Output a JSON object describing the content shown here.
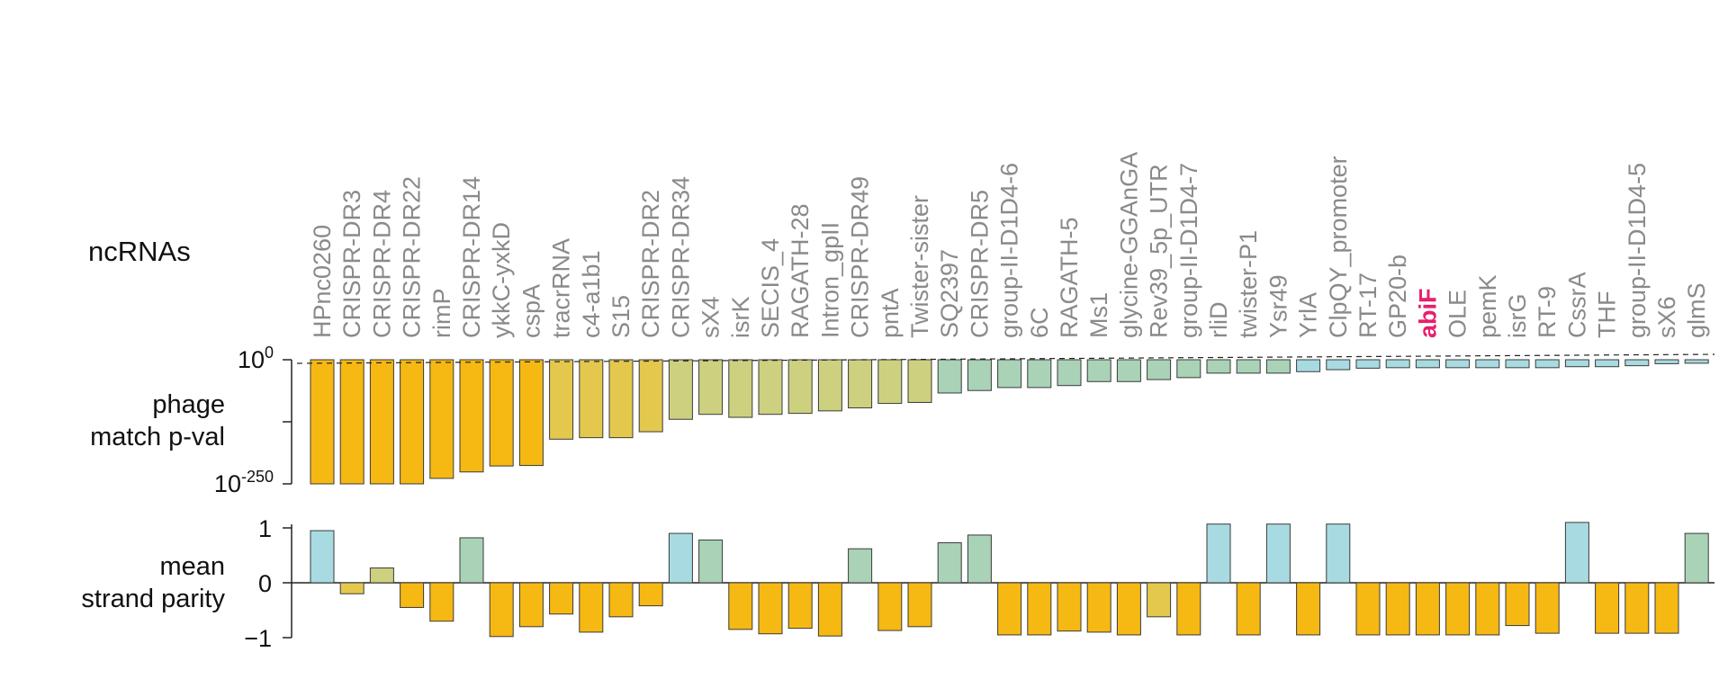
{
  "labels": {
    "ncrnas": "ncRNAs",
    "phage_line1": "phage",
    "phage_line2": "match p-val",
    "strand_line1": "mean",
    "strand_line2": "strand parity"
  },
  "highlight_color": "#e6206e",
  "colors": {
    "orange": "#f6b813",
    "mustard": "#e4c84e",
    "olive": "#cdd17f",
    "sage": "#a9d2b6",
    "blue": "#a8dbe1"
  },
  "chart_data": [
    {
      "type": "bar",
      "title": "",
      "ylabel": "phage match p-val",
      "yscale": "log",
      "ylim_exponent": [
        -250,
        0
      ],
      "yticks": [
        {
          "base": "10",
          "exp": "0"
        },
        {
          "base": "10",
          "exp": "-250"
        }
      ],
      "reference_line": "dashed near 10^0",
      "categories": [
        "HPnc0260",
        "CRISPR-DR3",
        "CRISPR-DR4",
        "CRISPR-DR22",
        "rimP",
        "CRISPR-DR14",
        "ykkC-yxkD",
        "cspA",
        "tracrRNA",
        "c4-a1b1",
        "S15",
        "CRISPR-DR2",
        "CRISPR-DR34",
        "sX4",
        "isrK",
        "SECIS_4",
        "RAGATH-28",
        "Intron_gpII",
        "CRISPR-DR49",
        "pntA",
        "Twister-sister",
        "SQ2397",
        "CRISPR-DR5",
        "group-II-D1D4-6",
        "6C",
        "RAGATH-5",
        "Ms1",
        "glycine-GGAnGA",
        "Rev39_5p_UTR",
        "group-II-D1D4-7",
        "rliD",
        "twister-P1",
        "Ysr49",
        "YrlA",
        "ClpQY_promoter",
        "RT-17",
        "GP20-b",
        "abiF",
        "OLE",
        "pemK",
        "isrG",
        "RT-9",
        "CssrA",
        "THF",
        "group-II-D1D4-5",
        "sX6",
        "glmS"
      ],
      "highlighted_category": "abiF",
      "log10_pvalues": [
        -250,
        -250,
        -250,
        -250,
        -239,
        -226,
        -214,
        -213,
        -160,
        -157,
        -157,
        -145,
        -120,
        -110,
        -116,
        -110,
        -108,
        -103,
        -97,
        -88,
        -86,
        -67,
        -62,
        -56,
        -56,
        -52,
        -44,
        -44,
        -40,
        -36,
        -27,
        -27,
        -27,
        -24,
        -20,
        -17,
        -16,
        -16,
        -16,
        -16,
        -16,
        -16,
        -14,
        -14,
        -12,
        -8,
        -7
      ],
      "bar_colors": [
        "orange",
        "orange",
        "orange",
        "orange",
        "orange",
        "orange",
        "orange",
        "orange",
        "mustard",
        "mustard",
        "mustard",
        "mustard",
        "olive",
        "olive",
        "olive",
        "olive",
        "olive",
        "olive",
        "olive",
        "olive",
        "olive",
        "sage",
        "sage",
        "sage",
        "sage",
        "sage",
        "sage",
        "sage",
        "sage",
        "sage",
        "sage",
        "sage",
        "sage",
        "blue",
        "blue",
        "blue",
        "blue",
        "blue",
        "blue",
        "blue",
        "blue",
        "blue",
        "blue",
        "blue",
        "blue",
        "blue",
        "blue"
      ]
    },
    {
      "type": "bar",
      "title": "",
      "ylabel": "mean strand parity",
      "ylim": [
        -1,
        1
      ],
      "yticks": [
        "1",
        "0",
        "−1"
      ],
      "values": [
        0.95,
        -0.2,
        0.27,
        -0.45,
        -0.7,
        0.82,
        -0.98,
        -0.8,
        -0.57,
        -0.9,
        -0.62,
        -0.42,
        0.9,
        0.78,
        -0.85,
        -0.93,
        -0.83,
        -0.97,
        0.62,
        -0.87,
        -0.8,
        0.73,
        0.87,
        -0.95,
        -0.95,
        -0.88,
        -0.9,
        -0.95,
        -0.62,
        -0.95,
        1.07,
        -0.95,
        1.07,
        -0.95,
        1.07,
        -0.95,
        -0.95,
        -0.95,
        -0.95,
        -0.95,
        -0.78,
        -0.92,
        1.1,
        -0.92,
        -0.92,
        -0.92,
        0.9
      ],
      "bar_colors": [
        "blue",
        "mustard",
        "olive",
        "orange",
        "orange",
        "sage",
        "orange",
        "orange",
        "orange",
        "orange",
        "orange",
        "orange",
        "blue",
        "sage",
        "orange",
        "orange",
        "orange",
        "orange",
        "sage",
        "orange",
        "orange",
        "sage",
        "sage",
        "orange",
        "orange",
        "orange",
        "orange",
        "orange",
        "mustard",
        "orange",
        "blue",
        "orange",
        "blue",
        "orange",
        "blue",
        "orange",
        "orange",
        "orange",
        "orange",
        "orange",
        "orange",
        "orange",
        "blue",
        "orange",
        "orange",
        "orange",
        "sage"
      ]
    }
  ]
}
